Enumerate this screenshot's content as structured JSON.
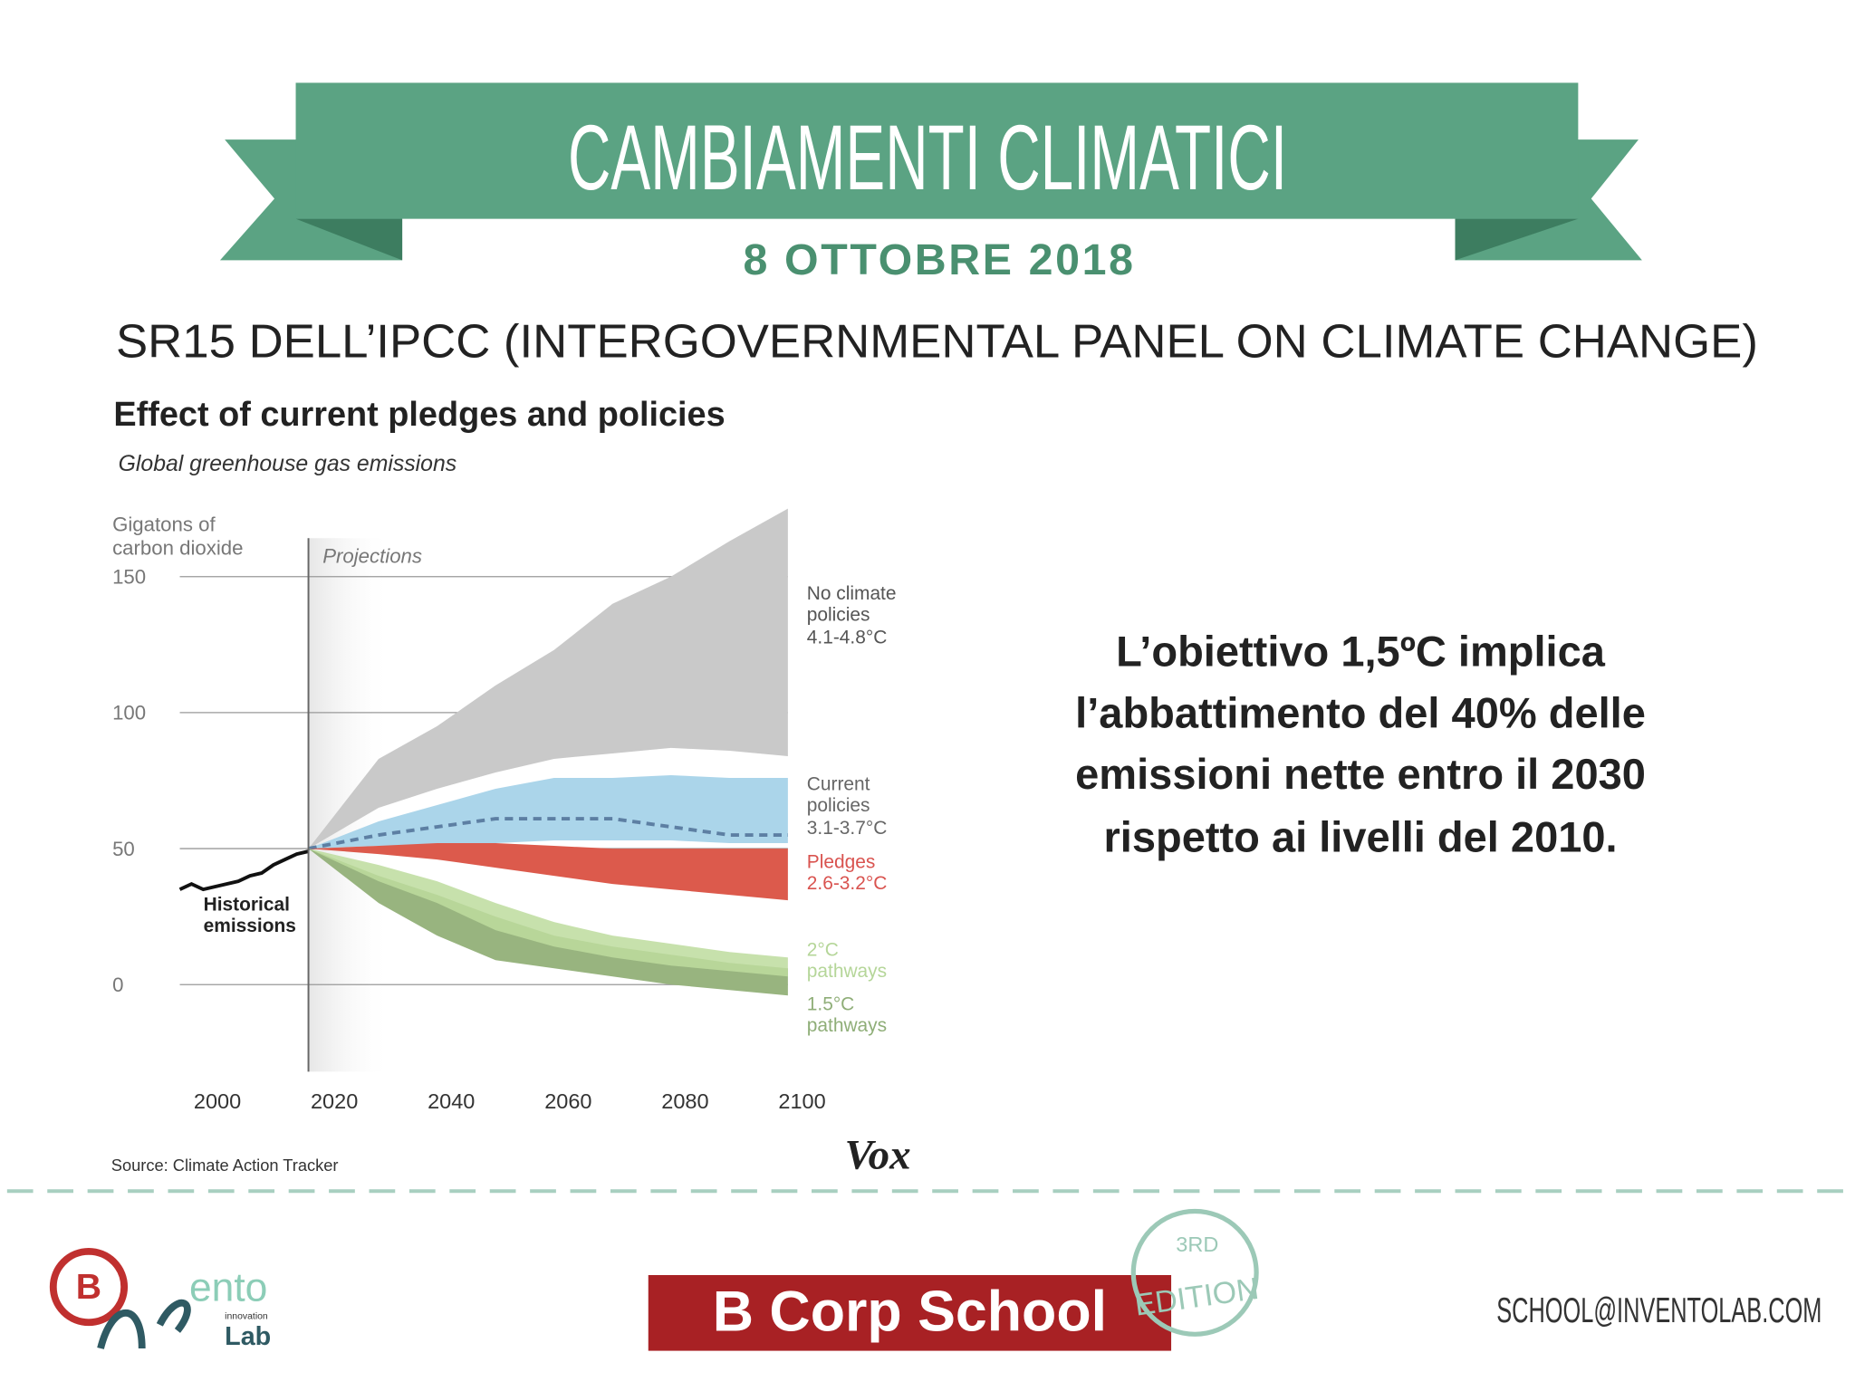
{
  "header": {
    "title": "CAMBIAMENTI CLIMATICI",
    "date": "8 OTTOBRE 2018",
    "subtitle": "SR15 DELL’IPCC (INTERGOVERNMENTAL PANEL ON CLIMATE CHANGE)"
  },
  "chart_data": {
    "type": "band",
    "title": "Effect of current pledges and policies",
    "subtitle": "Global greenhouse gas emissions",
    "y_label": "Gigatons of carbon dioxide",
    "projections_label": "Projections",
    "source": "Source: Climate Action Tracker",
    "brand": "Vox",
    "xlim": [
      1996,
      2100
    ],
    "xticks": [
      2000,
      2020,
      2040,
      2060,
      2080,
      2100
    ],
    "ylim": [
      -32,
      175
    ],
    "yticks": [
      0,
      50,
      100,
      150
    ],
    "grid": true,
    "historical": {
      "name": "Historical emissions",
      "color": "#111111",
      "x": [
        1996,
        1998,
        2000,
        2002,
        2004,
        2006,
        2008,
        2010,
        2012,
        2014,
        2016,
        2018
      ],
      "values": [
        35,
        37,
        35,
        36,
        37,
        38,
        40,
        41,
        44,
        46,
        48,
        49
      ]
    },
    "x": [
      2018,
      2030,
      2040,
      2050,
      2060,
      2070,
      2080,
      2090,
      2100
    ],
    "series": [
      {
        "name": "No climate policies",
        "range": "4.1-4.8°C",
        "color": "#c9c9c9",
        "label_color": "#555555",
        "upper": [
          50,
          83,
          95,
          110,
          123,
          140,
          150,
          163,
          175
        ],
        "values": [
          50,
          65,
          72,
          78,
          83,
          85,
          87,
          86,
          84
        ]
      },
      {
        "name": "Current policies",
        "range": "3.1-3.7°C",
        "color": "#abd5ea",
        "label_color": "#666666",
        "upper": [
          50,
          60,
          66,
          72,
          76,
          76,
          77,
          76,
          76
        ],
        "values": [
          50,
          51,
          51,
          52,
          53,
          53,
          53,
          52,
          52
        ],
        "median": [
          50,
          55,
          58,
          61,
          61,
          61,
          58,
          55,
          55
        ]
      },
      {
        "name": "Pledges",
        "range": "2.6-3.2°C",
        "color": "#dc5a4c",
        "label_color": "#d9534f",
        "upper": [
          50,
          51,
          52,
          52,
          51,
          50,
          50,
          50,
          50
        ],
        "values": [
          50,
          48,
          46,
          43,
          40,
          37,
          35,
          33,
          31
        ]
      },
      {
        "name": "1.5°C pathways",
        "color": "#98b47f",
        "label_color": "#8fae78",
        "upper": [
          50,
          40,
          33,
          25,
          18,
          14,
          11,
          8,
          6
        ],
        "values": [
          50,
          30,
          18,
          9,
          6,
          3,
          0,
          -2,
          -4
        ]
      },
      {
        "name": "2°C pathways",
        "color": "#bddc9e",
        "label_color": "#b5d699",
        "upper": [
          50,
          44,
          38,
          30,
          23,
          18,
          15,
          12,
          10
        ],
        "values": [
          50,
          38,
          30,
          20,
          14,
          10,
          7,
          5,
          3
        ]
      }
    ]
  },
  "statement": "L’obiettivo 1,5ºC implica l’abbattimento del 40% delle emissioni nette entro il 2030 rispetto ai livelli del 2010.",
  "footer": {
    "logo": {
      "letter": "B",
      "word": "ento",
      "small": "innovation",
      "lab": "Lab"
    },
    "school": "B Corp School",
    "stamp": {
      "top": "3RD",
      "bottom": "EDITION"
    },
    "email": "SCHOOL@INVENTOLAB.COM"
  }
}
